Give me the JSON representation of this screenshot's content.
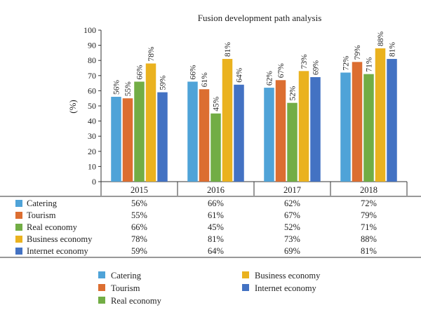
{
  "chart_data": {
    "type": "bar",
    "title": "Fusion development path analysis",
    "ylabel": "(%)",
    "xlabel": "",
    "ylim": [
      0,
      100
    ],
    "yticks": [
      0,
      10,
      20,
      30,
      40,
      50,
      60,
      70,
      80,
      90,
      100
    ],
    "categories": [
      "2015",
      "2016",
      "2017",
      "2018"
    ],
    "series": [
      {
        "name": "Catering",
        "color": "#4fa3d8",
        "values": [
          56,
          66,
          62,
          72
        ],
        "labels": [
          "56%",
          "66%",
          "62%",
          "72%"
        ]
      },
      {
        "name": "Tourism",
        "color": "#dc6e31",
        "values": [
          55,
          61,
          67,
          79
        ],
        "labels": [
          "55%",
          "61%",
          "67%",
          "79%"
        ]
      },
      {
        "name": "Real economy",
        "color": "#72ad45",
        "values": [
          66,
          45,
          52,
          71
        ],
        "labels": [
          "66%",
          "45%",
          "52%",
          "71%"
        ]
      },
      {
        "name": "Business economy",
        "color": "#eab21f",
        "values": [
          78,
          81,
          73,
          88
        ],
        "labels": [
          "78%",
          "81%",
          "73%",
          "88%"
        ]
      },
      {
        "name": "Internet economy",
        "color": "#4372c3",
        "values": [
          59,
          64,
          69,
          81
        ],
        "labels": [
          "59%",
          "64%",
          "69%",
          "81%"
        ]
      }
    ],
    "grid": false,
    "legend": "bottom",
    "data_table": true
  }
}
